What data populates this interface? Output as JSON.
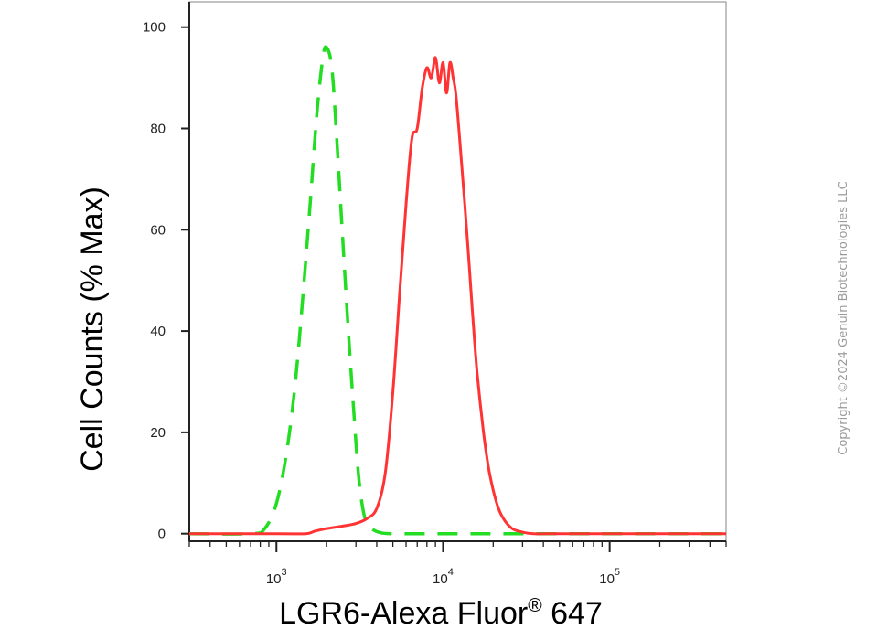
{
  "chart_data": {
    "type": "line",
    "title": "",
    "xlabel": "LGR6-Alexa Fluor",
    "xlabel_superscript": "®",
    "xlabel_suffix": " 647",
    "ylabel": "Cell Counts (% Max)",
    "x_scale": "log",
    "xlim": [
      300,
      500000
    ],
    "ylim": [
      -1.5,
      105
    ],
    "y_ticks": [
      0,
      20,
      40,
      60,
      80,
      100
    ],
    "y_tick_labels": [
      "0",
      "20",
      "40",
      "60",
      "80",
      "100"
    ],
    "x_major_ticks": [
      1000,
      10000,
      100000
    ],
    "x_tick_labels": [
      {
        "base": "10",
        "exp": "3"
      },
      {
        "base": "10",
        "exp": "4"
      },
      {
        "base": "10",
        "exp": "5"
      }
    ],
    "grid": false,
    "legend": "none",
    "series": [
      {
        "color": "#22dd22",
        "style": "dashed",
        "x": [
          300,
          700,
          850,
          1000,
          1150,
          1300,
          1450,
          1600,
          1750,
          1900,
          2000,
          2150,
          2300,
          2500,
          2700,
          2900,
          3100,
          3300,
          3500,
          3800,
          4200,
          5000,
          10000,
          30000,
          100000,
          500000
        ],
        "y": [
          0,
          0,
          1,
          6,
          16,
          30,
          48,
          66,
          83,
          94,
          96,
          92,
          78,
          58,
          40,
          25,
          12,
          5,
          2,
          0.8,
          0.2,
          0,
          0,
          0,
          0,
          0
        ]
      },
      {
        "color": "#ff3333",
        "style": "solid",
        "x": [
          300,
          1000,
          1500,
          1700,
          2000,
          2500,
          3000,
          3500,
          4000,
          4500,
          5000,
          5500,
          6000,
          6500,
          7000,
          7500,
          8000,
          8500,
          9000,
          9500,
          10000,
          10500,
          11000,
          11500,
          12000,
          13000,
          14000,
          15000,
          16000,
          17500,
          19000,
          21000,
          23000,
          26000,
          30000,
          35000,
          50000,
          100000,
          500000
        ],
        "y": [
          0,
          0,
          0,
          0.5,
          1,
          1.5,
          2,
          3,
          5,
          12,
          28,
          48,
          65,
          78,
          80,
          88,
          92,
          90,
          94,
          89,
          93,
          87,
          93,
          90,
          86,
          72,
          58,
          44,
          32,
          20,
          12,
          6,
          3,
          1,
          0.3,
          0,
          0,
          0,
          0
        ]
      }
    ]
  },
  "watermark": "Copyright ©2024 Genuin Biotechnologies LLC"
}
